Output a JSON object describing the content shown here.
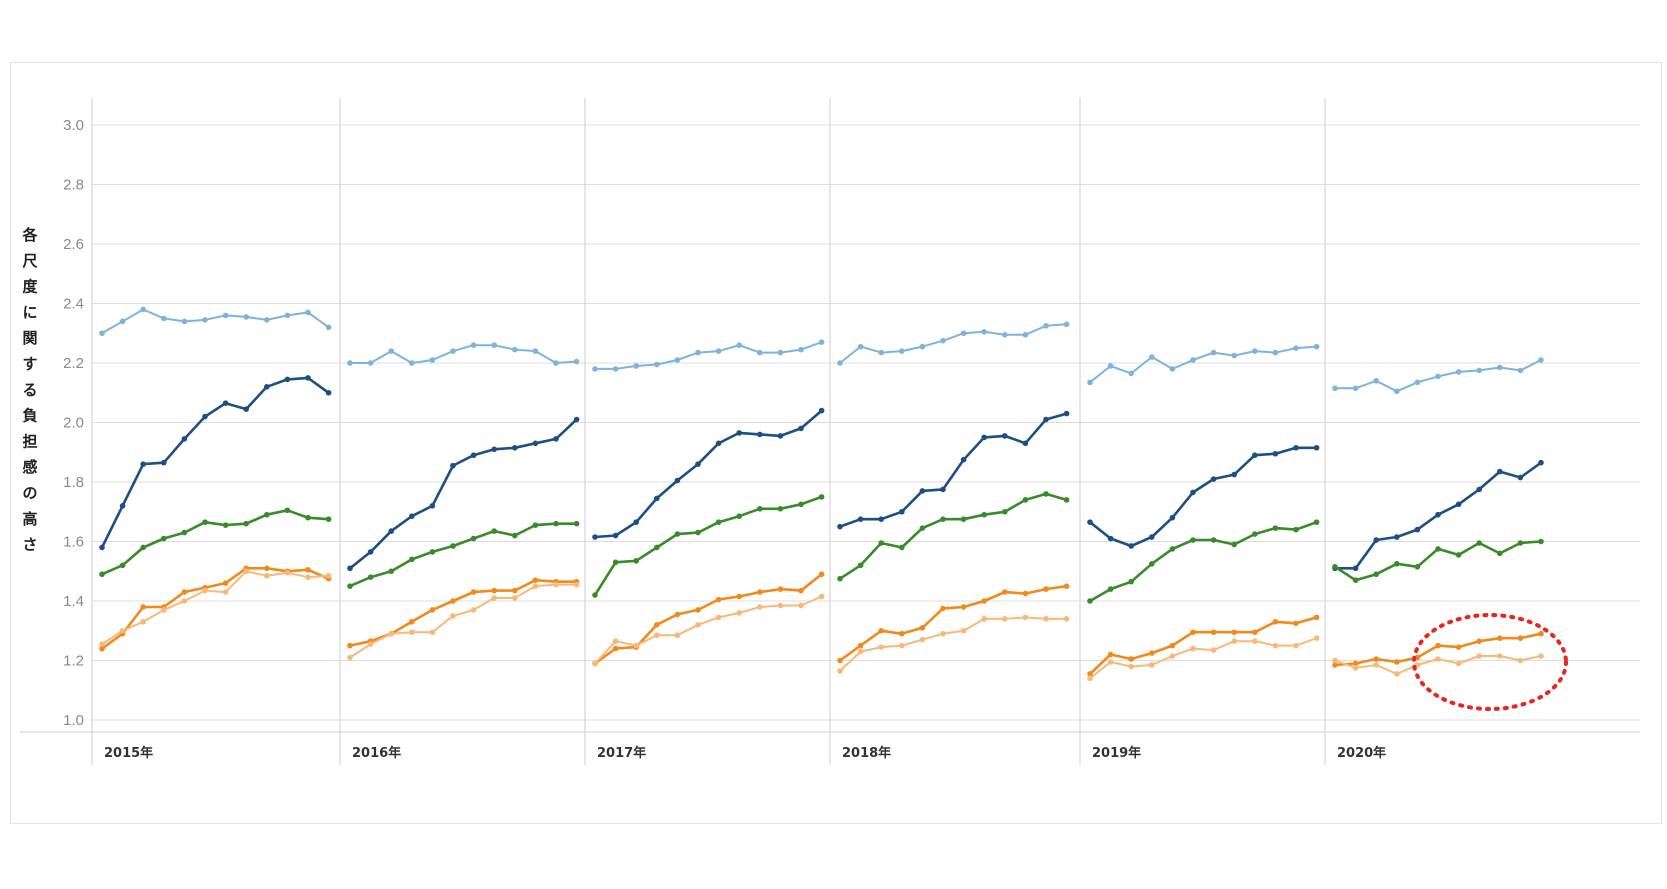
{
  "chart_data": {
    "type": "line",
    "title": "",
    "ylabel": "各尺度に関する負担感の高さ",
    "xlabel": "",
    "ylim": [
      1.0,
      3.0
    ],
    "yticks": [
      "3.0",
      "2.8",
      "2.6",
      "2.4",
      "2.2",
      "2.0",
      "1.8",
      "1.6",
      "1.4",
      "1.2",
      "1.0"
    ],
    "grid": true,
    "legend": "none",
    "panels": [
      {
        "label": "2015年",
        "series": [
          {
            "color": "#7fb3dc",
            "values": [
              2.3,
              2.34,
              2.38,
              2.35,
              2.34,
              2.345,
              2.36,
              2.355,
              2.345,
              2.36,
              2.37,
              2.32
            ]
          },
          {
            "color": "#1f4e85",
            "values": [
              1.58,
              1.72,
              1.86,
              1.865,
              1.945,
              2.02,
              2.065,
              2.045,
              2.12,
              2.145,
              2.15,
              2.1
            ]
          },
          {
            "color": "#3a8a2c",
            "values": [
              1.49,
              1.52,
              1.58,
              1.61,
              1.63,
              1.665,
              1.655,
              1.66,
              1.69,
              1.705,
              1.68,
              1.675
            ]
          },
          {
            "color": "#f08a1c",
            "values": [
              1.24,
              1.29,
              1.38,
              1.38,
              1.43,
              1.445,
              1.46,
              1.51,
              1.51,
              1.5,
              1.505,
              1.475
            ]
          },
          {
            "color": "#f7b97a",
            "values": [
              1.255,
              1.3,
              1.33,
              1.37,
              1.4,
              1.435,
              1.43,
              1.5,
              1.485,
              1.495,
              1.48,
              1.485
            ]
          }
        ]
      },
      {
        "label": "2016年",
        "series": [
          {
            "color": "#7fb3dc",
            "values": [
              2.2,
              2.2,
              2.24,
              2.2,
              2.21,
              2.24,
              2.26,
              2.26,
              2.245,
              2.24,
              2.2,
              2.205
            ]
          },
          {
            "color": "#1f4e85",
            "values": [
              1.51,
              1.565,
              1.635,
              1.685,
              1.72,
              1.855,
              1.89,
              1.91,
              1.915,
              1.93,
              1.945,
              2.01
            ]
          },
          {
            "color": "#3a8a2c",
            "values": [
              1.45,
              1.48,
              1.5,
              1.54,
              1.565,
              1.585,
              1.61,
              1.635,
              1.62,
              1.655,
              1.66,
              1.66
            ]
          },
          {
            "color": "#f08a1c",
            "values": [
              1.25,
              1.265,
              1.29,
              1.33,
              1.37,
              1.4,
              1.43,
              1.435,
              1.435,
              1.47,
              1.465,
              1.465
            ]
          },
          {
            "color": "#f7b97a",
            "values": [
              1.21,
              1.255,
              1.29,
              1.295,
              1.295,
              1.35,
              1.37,
              1.41,
              1.41,
              1.45,
              1.455,
              1.455
            ]
          }
        ]
      },
      {
        "label": "2017年",
        "series": [
          {
            "color": "#7fb3dc",
            "values": [
              2.18,
              2.18,
              2.19,
              2.195,
              2.21,
              2.235,
              2.24,
              2.26,
              2.235,
              2.235,
              2.245,
              2.27
            ]
          },
          {
            "color": "#1f4e85",
            "values": [
              1.615,
              1.62,
              1.665,
              1.745,
              1.805,
              1.86,
              1.93,
              1.965,
              1.96,
              1.955,
              1.98,
              2.04
            ]
          },
          {
            "color": "#3a8a2c",
            "values": [
              1.42,
              1.53,
              1.535,
              1.58,
              1.625,
              1.63,
              1.665,
              1.685,
              1.71,
              1.71,
              1.725,
              1.75
            ]
          },
          {
            "color": "#f08a1c",
            "values": [
              1.19,
              1.24,
              1.245,
              1.32,
              1.355,
              1.37,
              1.405,
              1.415,
              1.43,
              1.44,
              1.435,
              1.49
            ]
          },
          {
            "color": "#f7b97a",
            "values": [
              1.19,
              1.265,
              1.25,
              1.285,
              1.285,
              1.32,
              1.345,
              1.36,
              1.38,
              1.385,
              1.385,
              1.415
            ]
          }
        ]
      },
      {
        "label": "2018年",
        "series": [
          {
            "color": "#7fb3dc",
            "values": [
              2.2,
              2.255,
              2.235,
              2.24,
              2.255,
              2.275,
              2.3,
              2.305,
              2.295,
              2.295,
              2.325,
              2.33
            ]
          },
          {
            "color": "#1f4e85",
            "values": [
              1.65,
              1.675,
              1.675,
              1.7,
              1.77,
              1.775,
              1.875,
              1.95,
              1.955,
              1.93,
              2.01,
              2.03
            ]
          },
          {
            "color": "#3a8a2c",
            "values": [
              1.475,
              1.52,
              1.595,
              1.58,
              1.645,
              1.675,
              1.675,
              1.69,
              1.7,
              1.74,
              1.76,
              1.74
            ]
          },
          {
            "color": "#f08a1c",
            "values": [
              1.2,
              1.25,
              1.3,
              1.29,
              1.31,
              1.375,
              1.38,
              1.4,
              1.43,
              1.425,
              1.44,
              1.45
            ]
          },
          {
            "color": "#f7b97a",
            "values": [
              1.165,
              1.23,
              1.245,
              1.25,
              1.27,
              1.29,
              1.3,
              1.34,
              1.34,
              1.345,
              1.34,
              1.34
            ]
          }
        ]
      },
      {
        "label": "2019年",
        "series": [
          {
            "color": "#7fb3dc",
            "values": [
              2.135,
              2.19,
              2.165,
              2.22,
              2.18,
              2.21,
              2.235,
              2.225,
              2.24,
              2.235,
              2.25,
              2.255
            ]
          },
          {
            "color": "#1f4e85",
            "values": [
              1.665,
              1.61,
              1.585,
              1.615,
              1.68,
              1.765,
              1.81,
              1.825,
              1.89,
              1.895,
              1.915,
              1.915
            ]
          },
          {
            "color": "#3a8a2c",
            "values": [
              1.4,
              1.44,
              1.465,
              1.525,
              1.575,
              1.605,
              1.605,
              1.59,
              1.625,
              1.645,
              1.64,
              1.665
            ]
          },
          {
            "color": "#f08a1c",
            "values": [
              1.155,
              1.22,
              1.205,
              1.225,
              1.25,
              1.295,
              1.295,
              1.295,
              1.295,
              1.33,
              1.325,
              1.345
            ]
          },
          {
            "color": "#f7b97a",
            "values": [
              1.14,
              1.195,
              1.18,
              1.185,
              1.215,
              1.24,
              1.235,
              1.265,
              1.265,
              1.25,
              1.25,
              1.275
            ]
          }
        ]
      },
      {
        "label": "2020年",
        "series": [
          {
            "color": "#7fb3dc",
            "values": [
              2.115,
              2.115,
              2.14,
              2.105,
              2.135,
              2.155,
              2.17,
              2.175,
              2.185,
              2.175,
              2.21
            ]
          },
          {
            "color": "#1f4e85",
            "values": [
              1.51,
              1.51,
              1.605,
              1.615,
              1.64,
              1.69,
              1.725,
              1.775,
              1.835,
              1.815,
              1.865
            ]
          },
          {
            "color": "#3a8a2c",
            "values": [
              1.515,
              1.47,
              1.49,
              1.525,
              1.515,
              1.575,
              1.555,
              1.595,
              1.56,
              1.595,
              1.6
            ]
          },
          {
            "color": "#f08a1c",
            "values": [
              1.185,
              1.19,
              1.205,
              1.195,
              1.21,
              1.25,
              1.245,
              1.265,
              1.275,
              1.275,
              1.29
            ]
          },
          {
            "color": "#f7b97a",
            "values": [
              1.2,
              1.175,
              1.185,
              1.155,
              1.185,
              1.205,
              1.19,
              1.215,
              1.215,
              1.2,
              1.215
            ]
          }
        ]
      }
    ]
  },
  "colors": {
    "grid": "#dddddd",
    "divider": "#d6d6d6",
    "highlight": "#e8251e"
  },
  "annotation": {
    "type": "dotted-ellipse",
    "target_panel": "2020年",
    "target_series": "orange"
  }
}
